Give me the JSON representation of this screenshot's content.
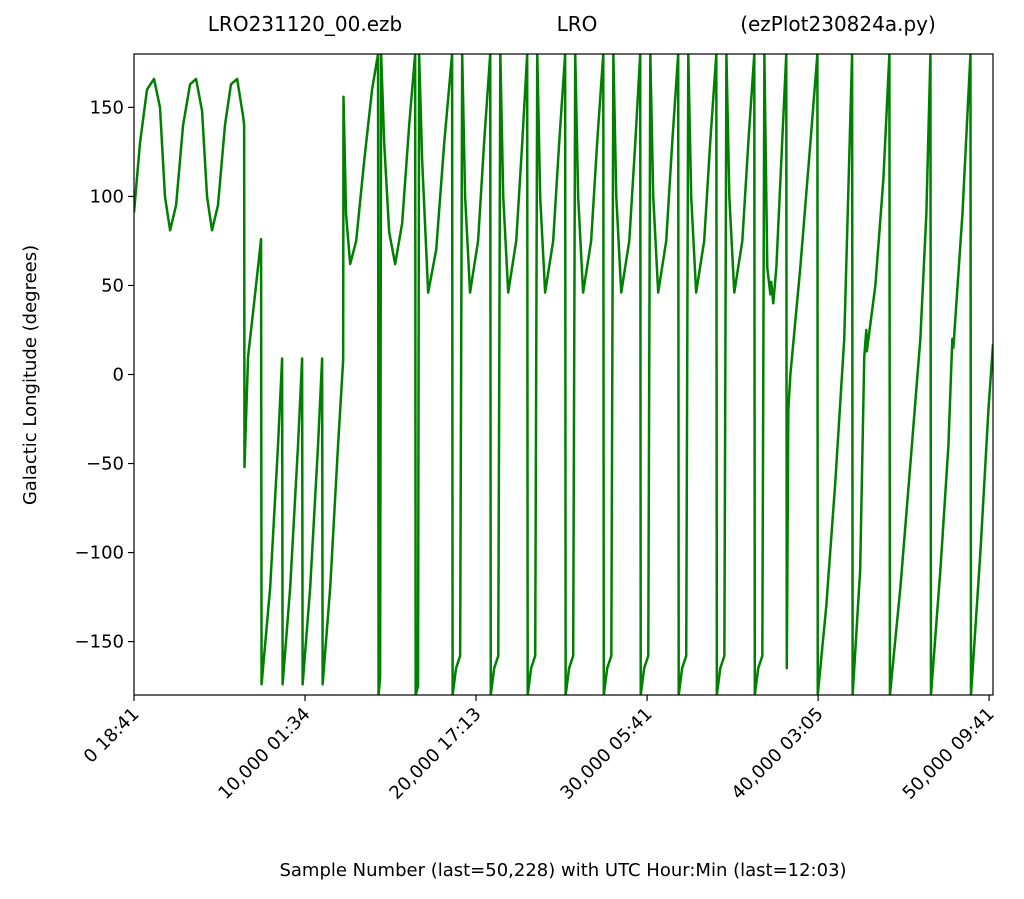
{
  "chart_data": {
    "type": "line",
    "title_left": "LRO231120_00.ezb",
    "title_center": "LRO",
    "title_right": "(ezPlot230824a.py)",
    "x_label": "Sample Number (last=50,228) with UTC Hour:Min (last=12:03)",
    "y_label": "Galactic Longitude (degrees)",
    "xlim": [
      0,
      50228
    ],
    "ylim": [
      -180,
      180
    ],
    "xticks": [
      {
        "value": 0,
        "label": "0  18:41"
      },
      {
        "value": 10000,
        "label": "10,000  01:34"
      },
      {
        "value": 20000,
        "label": "20,000  17:13"
      },
      {
        "value": 30000,
        "label": "30,000  05:41"
      },
      {
        "value": 40000,
        "label": "40,000  03:05"
      },
      {
        "value": 50000,
        "label": "50,000  09:41"
      }
    ],
    "yticks": [
      {
        "value": -150,
        "label": "−150"
      },
      {
        "value": -100,
        "label": "−100"
      },
      {
        "value": -50,
        "label": "−50"
      },
      0,
      50,
      100,
      150
    ],
    "color": "#008000",
    "x": [
      0,
      350,
      760,
      1170,
      1520,
      1810,
      2110,
      2460,
      2870,
      3280,
      3630,
      3980,
      4270,
      4560,
      4910,
      5320,
      5670,
      6030,
      6380,
      6440,
      6460,
      6670,
      7020,
      7430,
      7460,
      7960,
      8420,
      8660,
      8690,
      9130,
      9590,
      9830,
      9860,
      10300,
      10760,
      11000,
      11030,
      11470,
      11930,
      12230,
      12250,
      12400,
      12640,
      12990,
      13460,
      13920,
      14270,
      14300,
      14390,
      14450,
      14630,
      14920,
      15270,
      15680,
      16090,
      16440,
      16470,
      16610,
      16670,
      16850,
      17200,
      17670,
      18140,
      18600,
      18630,
      18830,
      19070,
      19190,
      19360,
      19650,
      20120,
      20470,
      20830,
      20860,
      21060,
      21300,
      21420,
      21590,
      21880,
      22350,
      22700,
      22990,
      23020,
      23220,
      23460,
      23580,
      23750,
      24040,
      24510,
      24860,
      25210,
      25240,
      25440,
      25680,
      25800,
      25970,
      26260,
      26730,
      27080,
      27440,
      27470,
      27670,
      27910,
      28030,
      28200,
      28490,
      28960,
      29310,
      29600,
      29630,
      29830,
      30070,
      30190,
      30360,
      30650,
      31120,
      31470,
      31820,
      31850,
      32050,
      32290,
      32410,
      32580,
      32870,
      33340,
      33690,
      34050,
      34080,
      34280,
      34520,
      34640,
      34810,
      35100,
      35570,
      35920,
      36270,
      36300,
      36500,
      36740,
      36860,
      37030,
      37210,
      37260,
      37380,
      37560,
      37850,
      38140,
      38170,
      38260,
      38380,
      38960,
      39550,
      39960,
      39980,
      40480,
      41010,
      41530,
      41990,
      42020,
      42460,
      42700,
      42820,
      42850,
      43350,
      43820,
      44170,
      44200,
      44810,
      45400,
      45980,
      46330,
      46570,
      46600,
      47150,
      47620,
      47850,
      47910,
      48440,
      48910,
      48940,
      49490,
      49960,
      50228
    ],
    "values": [
      91,
      130,
      160,
      166,
      150,
      100,
      81,
      95,
      140,
      163,
      166,
      148,
      100,
      81,
      95,
      140,
      163,
      166,
      145,
      140,
      -52,
      10,
      40,
      76,
      -174,
      -120,
      -40,
      9,
      -174,
      -120,
      -40,
      9,
      -174,
      -120,
      -40,
      9,
      -174,
      -120,
      -40,
      8,
      156,
      90,
      62,
      75,
      120,
      160,
      180,
      -180,
      -170,
      180,
      130,
      80,
      62,
      85,
      140,
      180,
      -180,
      -175,
      180,
      120,
      46,
      70,
      130,
      180,
      -180,
      -165,
      -158,
      180,
      100,
      46,
      75,
      130,
      180,
      -180,
      -165,
      -158,
      180,
      100,
      46,
      75,
      130,
      180,
      -180,
      -165,
      -158,
      180,
      100,
      46,
      75,
      130,
      180,
      -180,
      -165,
      -158,
      180,
      100,
      46,
      75,
      130,
      180,
      -180,
      -165,
      -158,
      180,
      100,
      46,
      75,
      130,
      180,
      -180,
      -165,
      -158,
      180,
      100,
      46,
      75,
      130,
      180,
      -180,
      -165,
      -158,
      180,
      100,
      46,
      75,
      130,
      180,
      -180,
      -165,
      -158,
      180,
      100,
      46,
      75,
      130,
      180,
      -180,
      -165,
      -158,
      180,
      60,
      45,
      52,
      40,
      60,
      120,
      180,
      -165,
      -20,
      0,
      60,
      130,
      180,
      -180,
      -130,
      -60,
      20,
      180,
      -180,
      -110,
      10,
      25,
      13,
      50,
      110,
      180,
      -180,
      -120,
      -50,
      20,
      90,
      180,
      -180,
      -110,
      -40,
      20,
      15,
      90,
      180,
      -180,
      -100,
      -20,
      17
    ]
  }
}
